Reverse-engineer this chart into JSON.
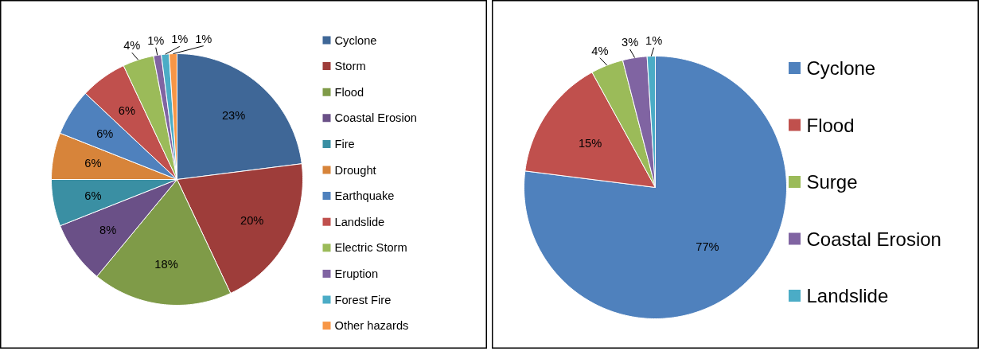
{
  "chart_data": [
    {
      "type": "pie",
      "categories": [
        "Cyclone",
        "Storm",
        "Flood",
        "Coastal Erosion",
        "Fire",
        "Drought",
        "Earthquake",
        "Landslide",
        "Electric Storm",
        "Eruption",
        "Forest Fire",
        "Other hazards"
      ],
      "values": [
        23,
        20,
        18,
        8,
        6,
        6,
        6,
        6,
        4,
        1,
        1,
        1
      ],
      "value_labels": [
        "23%",
        "20%",
        "18%",
        "8%",
        "6%",
        "6%",
        "6%",
        "6%",
        "4%",
        "1%",
        "1%",
        "1%"
      ],
      "colors": [
        "#3f6797",
        "#9e3d3a",
        "#7f9b48",
        "#6a5087",
        "#3a8fa3",
        "#d7843a",
        "#4f81bd",
        "#c0504d",
        "#9bbb59",
        "#8064a2",
        "#4bacc6",
        "#f79646"
      ],
      "legend": "right"
    },
    {
      "type": "pie",
      "categories": [
        "Cyclone",
        "Flood",
        "Surge",
        "Coastal Erosion",
        "Landslide"
      ],
      "values": [
        77,
        15,
        4,
        3,
        1
      ],
      "value_labels": [
        "77%",
        "15%",
        "4%",
        "3%",
        "1%"
      ],
      "colors": [
        "#4f81bd",
        "#c0504d",
        "#9bbb59",
        "#8064a2",
        "#4bacc6"
      ],
      "legend": "right"
    }
  ]
}
